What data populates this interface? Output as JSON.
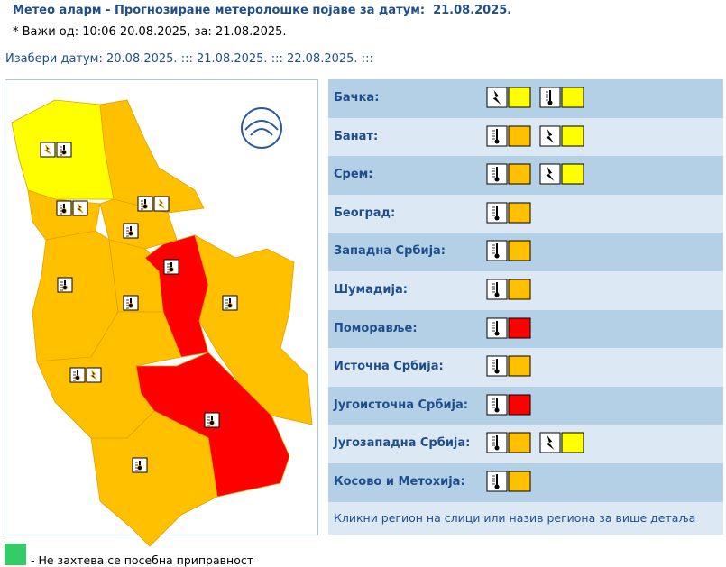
{
  "header": {
    "title": "Метео аларм - Прогнозиране метеролошке појаве за датум:  21.08.2025.",
    "validity": "* Важи од: 10:06 20.08.2025, за: 21.08.2025.",
    "date_label": "Изабери датум:",
    "dates": [
      "20.08.2025.",
      "21.08.2025.",
      "22.08.2025."
    ],
    "separator": ":::"
  },
  "regions": [
    {
      "name": "Бачка:",
      "alerts": [
        {
          "type": "storm",
          "color": "#ffff00"
        },
        {
          "type": "heat",
          "color": "#ffff00"
        }
      ]
    },
    {
      "name": "Банат:",
      "alerts": [
        {
          "type": "heat",
          "color": "#ffc000"
        },
        {
          "type": "storm",
          "color": "#ffff00"
        }
      ]
    },
    {
      "name": "Срем:",
      "alerts": [
        {
          "type": "heat",
          "color": "#ffc000"
        },
        {
          "type": "storm",
          "color": "#ffff00"
        }
      ]
    },
    {
      "name": "Београд:",
      "alerts": [
        {
          "type": "heat",
          "color": "#ffc000"
        }
      ]
    },
    {
      "name": "Западна Србија:",
      "alerts": [
        {
          "type": "heat",
          "color": "#ffc000"
        }
      ]
    },
    {
      "name": "Шумадија:",
      "alerts": [
        {
          "type": "heat",
          "color": "#ffc000"
        }
      ]
    },
    {
      "name": "Поморавље:",
      "alerts": [
        {
          "type": "heat",
          "color": "#ff0000"
        }
      ]
    },
    {
      "name": "Источна Србија:",
      "alerts": [
        {
          "type": "heat",
          "color": "#ffc000"
        }
      ]
    },
    {
      "name": "Југоисточна Србија:",
      "alerts": [
        {
          "type": "heat",
          "color": "#ff0000"
        }
      ]
    },
    {
      "name": "Југозападна Србија:",
      "alerts": [
        {
          "type": "heat",
          "color": "#ffc000"
        },
        {
          "type": "storm",
          "color": "#ffff00"
        }
      ]
    },
    {
      "name": "Косово и Метохија:",
      "alerts": [
        {
          "type": "heat",
          "color": "#ffc000"
        }
      ]
    }
  ],
  "footer_note": "Кликни регион на слици или назив региона за више детаља",
  "legend": [
    {
      "color": "#33cc66",
      "label": "- Не захтева се посебна приправност"
    }
  ]
}
